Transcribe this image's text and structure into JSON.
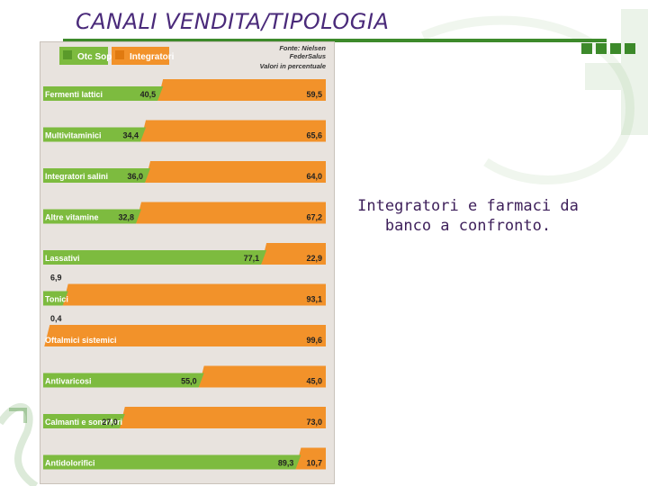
{
  "slide": {
    "title": "CANALI VENDITA/TIPOLOGIA",
    "caption": "Integratori e farmaci da banco a confronto."
  },
  "colors": {
    "title": "#4a2a7a",
    "accent_green": "#3d8a2b",
    "series_otc": "#7dbb3f",
    "series_integratori": "#f2922a",
    "panel": "#e8e3de"
  },
  "chart_data": {
    "type": "bar",
    "orientation": "horizontal-stacked",
    "title": "",
    "source": [
      "Fonte: Nielsen",
      "FederSalus"
    ],
    "note": "Valori in percentuale",
    "legend": [
      "Otc Sop",
      "Integratori"
    ],
    "legend_position": "top-left",
    "xlim": [
      0,
      100
    ],
    "categories": [
      "Fermenti lattici",
      "Multivitaminici",
      "Integratori salini",
      "Altre vitamine",
      "Lassativi",
      "Tonici",
      "Oftalmici sistemici",
      "Antivaricosi",
      "Calmanti e sonniferi",
      "Antidolorifici"
    ],
    "series": [
      {
        "name": "Otc Sop",
        "values": [
          40.5,
          34.4,
          36.0,
          32.8,
          77.1,
          6.9,
          0.4,
          55.0,
          27.0,
          89.3
        ],
        "labels": [
          "40,5",
          "34,4",
          "36,0",
          "32,8",
          "77,1",
          "6,9",
          "0,4",
          "55,0",
          "27,0",
          "89,3"
        ]
      },
      {
        "name": "Integratori",
        "values": [
          59.5,
          65.6,
          64.0,
          67.2,
          22.9,
          93.1,
          99.6,
          45.0,
          73.0,
          10.7
        ],
        "labels": [
          "59,5",
          "65,6",
          "64,0",
          "67,2",
          "22,9",
          "93,1",
          "99,6",
          "45,0",
          "73,0",
          "10,7"
        ]
      }
    ]
  }
}
